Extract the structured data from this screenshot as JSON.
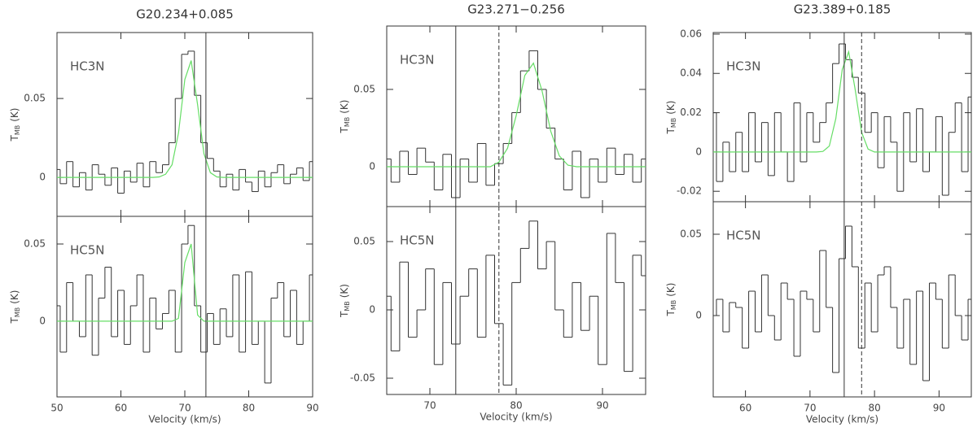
{
  "chart_data": [
    {
      "type": "line",
      "step": true,
      "title": "G20.234+0.085",
      "label": "HC3N",
      "ylabel": {
        "main": "T",
        "sub": "MB",
        "unit": "(K)"
      },
      "x": [
        50,
        51,
        52,
        53,
        54,
        55,
        56,
        57,
        58,
        59,
        60,
        61,
        62,
        63,
        64,
        65,
        66,
        67,
        68,
        69,
        70,
        71,
        72,
        73,
        74,
        75,
        76,
        77,
        78,
        79,
        80,
        81,
        82,
        83,
        84,
        85,
        86,
        87,
        88,
        89,
        90
      ],
      "xlim": [
        50,
        90
      ],
      "ylim": [
        -0.0247,
        0.0918
      ],
      "yticks": [
        0,
        0.05
      ],
      "vlines": [
        {
          "value": 73.3,
          "style": "solid"
        }
      ],
      "series": [
        {
          "color": "#333333",
          "values": [
            0.005,
            -0.004,
            0.01,
            -0.006,
            0.003,
            -0.008,
            0.008,
            0.002,
            -0.005,
            0.006,
            -0.01,
            0.004,
            -0.003,
            0.009,
            -0.006,
            0.01,
            0.003,
            0.008,
            0.022,
            0.05,
            0.078,
            0.08,
            0.052,
            0.022,
            0.012,
            0.004,
            -0.006,
            0.002,
            -0.008,
            0.005,
            -0.003,
            -0.009,
            0.004,
            -0.006,
            0.003,
            0.008,
            -0.004,
            0.002,
            0.006,
            -0.002,
            0.01
          ]
        },
        {
          "color": "#66dd66",
          "fit": true,
          "values": [
            0,
            0,
            0,
            0,
            0,
            0,
            0,
            0,
            0,
            0,
            0,
            0,
            0,
            0,
            0,
            0,
            0.0003,
            0.002,
            0.008,
            0.028,
            0.062,
            0.074,
            0.046,
            0.015,
            0.003,
            0.0003,
            0,
            0,
            0,
            0,
            0,
            0,
            0,
            0,
            0,
            0,
            0,
            0,
            0,
            0,
            0
          ]
        }
      ]
    },
    {
      "type": "line",
      "step": true,
      "label": "HC5N",
      "ylabel": {
        "main": "T",
        "sub": "MB",
        "unit": "(K)"
      },
      "xlabel": "Velocity (km/s)",
      "x": [
        50,
        51,
        52,
        53,
        54,
        55,
        56,
        57,
        58,
        59,
        60,
        61,
        62,
        63,
        64,
        65,
        66,
        67,
        68,
        69,
        70,
        71,
        72,
        73,
        74,
        75,
        76,
        77,
        78,
        79,
        80,
        81,
        82,
        83,
        84,
        85,
        86,
        87,
        88,
        89,
        90
      ],
      "xlim": [
        50,
        90
      ],
      "xticks": [
        50,
        60,
        70,
        80,
        90
      ],
      "ylim": [
        -0.049,
        0.0679
      ],
      "yticks": [
        0,
        0.05
      ],
      "vlines": [
        {
          "value": 73.3,
          "style": "solid"
        }
      ],
      "series": [
        {
          "color": "#333333",
          "values": [
            0.01,
            -0.02,
            0.025,
            0.0,
            -0.01,
            0.03,
            -0.022,
            0.015,
            0.035,
            -0.01,
            0.02,
            -0.015,
            0.01,
            0.03,
            -0.02,
            0.015,
            -0.005,
            0.005,
            0.02,
            -0.02,
            0.05,
            0.062,
            0.01,
            -0.02,
            0.005,
            -0.015,
            0.008,
            -0.01,
            0.03,
            -0.02,
            0.032,
            -0.015,
            0.0,
            -0.04,
            0.015,
            0.025,
            -0.01,
            0.02,
            -0.015,
            0.0,
            0.03
          ]
        },
        {
          "color": "#66dd66",
          "fit": true,
          "values": [
            0,
            0,
            0,
            0,
            0,
            0,
            0,
            0,
            0,
            0,
            0,
            0,
            0,
            0,
            0,
            0,
            0,
            0,
            0,
            0.0018,
            0.038,
            0.05,
            0.004,
            0,
            0,
            0,
            0,
            0,
            0,
            0,
            0,
            0,
            0,
            0,
            0,
            0,
            0,
            0,
            0,
            0,
            0
          ]
        }
      ]
    },
    {
      "type": "line",
      "step": true,
      "title": "G23.271−0.256",
      "label": "HC3N",
      "ylabel": {
        "main": "T",
        "sub": "MB",
        "unit": "(K)"
      },
      "x": [
        65,
        66,
        67,
        68,
        69,
        70,
        71,
        72,
        73,
        74,
        75,
        76,
        77,
        78,
        79,
        80,
        81,
        82,
        83,
        84,
        85,
        86,
        87,
        88,
        89,
        90,
        91,
        92,
        93,
        94,
        95
      ],
      "xlim": [
        65,
        95
      ],
      "ylim": [
        -0.0258,
        0.091
      ],
      "yticks": [
        0,
        0.05
      ],
      "vlines": [
        {
          "value": 73.0,
          "style": "solid"
        },
        {
          "value": 78.0,
          "style": "dashed"
        }
      ],
      "series": [
        {
          "color": "#333333",
          "values": [
            0.005,
            -0.01,
            0.01,
            -0.005,
            0.012,
            0.003,
            -0.015,
            0.008,
            -0.02,
            0.005,
            -0.01,
            0.015,
            -0.012,
            0.002,
            0.015,
            0.035,
            0.062,
            0.075,
            0.05,
            0.025,
            0.005,
            -0.015,
            0.01,
            -0.02,
            0.005,
            -0.01,
            0.012,
            -0.005,
            0.008,
            -0.01,
            0.005
          ]
        },
        {
          "color": "#66dd66",
          "fit": true,
          "values": [
            0,
            0,
            0,
            0,
            0,
            0,
            0,
            0,
            0,
            0,
            0,
            0,
            0,
            0.003,
            0.012,
            0.033,
            0.059,
            0.067,
            0.049,
            0.023,
            0.007,
            0.001,
            0,
            0,
            0,
            0,
            0,
            0,
            0,
            0,
            0
          ]
        }
      ]
    },
    {
      "type": "line",
      "step": true,
      "label": "HC5N",
      "ylabel": {
        "main": "T",
        "sub": "MB",
        "unit": "(K)"
      },
      "xlabel": "Velocity (km/s)",
      "x": [
        65,
        66,
        67,
        68,
        69,
        70,
        71,
        72,
        73,
        74,
        75,
        76,
        77,
        78,
        79,
        80,
        81,
        82,
        83,
        84,
        85,
        86,
        87,
        88,
        89,
        90,
        91,
        92,
        93,
        94,
        95
      ],
      "xlim": [
        65,
        95
      ],
      "xticks": [
        70,
        80,
        90
      ],
      "ylim": [
        -0.0619,
        0.0756
      ],
      "yticks": [
        -0.05,
        0,
        0.05
      ],
      "vlines": [
        {
          "value": 73.0,
          "style": "solid"
        },
        {
          "value": 78.0,
          "style": "dashed"
        }
      ],
      "series": [
        {
          "color": "#333333",
          "values": [
            0.01,
            -0.03,
            0.035,
            -0.02,
            0.0,
            0.03,
            -0.04,
            0.02,
            -0.025,
            0.01,
            0.03,
            -0.02,
            0.04,
            -0.01,
            -0.055,
            0.02,
            0.045,
            0.065,
            0.03,
            0.05,
            0.0,
            -0.02,
            0.02,
            -0.015,
            0.01,
            -0.04,
            0.056,
            0.02,
            -0.045,
            0.04,
            0.025
          ]
        }
      ]
    },
    {
      "type": "line",
      "step": true,
      "title": "G23.389+0.185",
      "label": "HC3N",
      "ylabel": {
        "main": "T",
        "sub": "MB",
        "unit": "(K)"
      },
      "x": [
        55,
        56,
        57,
        58,
        59,
        60,
        61,
        62,
        63,
        64,
        65,
        66,
        67,
        68,
        69,
        70,
        71,
        72,
        73,
        74,
        75,
        76,
        77,
        78,
        79,
        80,
        81,
        82,
        83,
        84,
        85,
        86,
        87,
        88,
        89,
        90,
        91,
        92,
        93,
        94,
        95
      ],
      "xlim": [
        55,
        95
      ],
      "ylim": [
        -0.0253,
        0.0608
      ],
      "yticks": [
        -0.02,
        0,
        0.02,
        0.04,
        0.06
      ],
      "vlines": [
        {
          "value": 75.3,
          "style": "solid"
        },
        {
          "value": 78.0,
          "style": "dashed"
        }
      ],
      "series": [
        {
          "color": "#333333",
          "values": [
            0.02,
            -0.015,
            0.005,
            -0.01,
            0.01,
            -0.01,
            0.02,
            -0.005,
            0.015,
            -0.012,
            0.02,
            0.0,
            -0.015,
            0.025,
            -0.005,
            0.02,
            0.005,
            0.015,
            0.025,
            0.045,
            0.055,
            0.047,
            0.038,
            0.03,
            0.01,
            0.02,
            -0.008,
            0.018,
            0.005,
            -0.02,
            0.02,
            -0.005,
            0.022,
            -0.01,
            0.0,
            0.018,
            -0.022,
            0.01,
            0.025,
            -0.01,
            0.028
          ]
        },
        {
          "color": "#66dd66",
          "fit": true,
          "values": [
            0,
            0,
            0,
            0,
            0,
            0,
            0,
            0,
            0,
            0,
            0,
            0,
            0,
            0,
            0,
            0,
            0,
            0.0003,
            0.003,
            0.017,
            0.042,
            0.051,
            0.032,
            0.01,
            0.0015,
            0,
            0,
            0,
            0,
            0,
            0,
            0,
            0,
            0,
            0,
            0,
            0,
            0,
            0,
            0,
            0
          ]
        }
      ]
    },
    {
      "type": "line",
      "step": true,
      "label": "HC5N",
      "ylabel": {
        "main": "T",
        "sub": "MB",
        "unit": "(K)"
      },
      "xlabel": "Velocity (km/s)",
      "x": [
        55,
        56,
        57,
        58,
        59,
        60,
        61,
        62,
        63,
        64,
        65,
        66,
        67,
        68,
        69,
        70,
        71,
        72,
        73,
        74,
        75,
        76,
        77,
        78,
        79,
        80,
        81,
        82,
        83,
        84,
        85,
        86,
        87,
        88,
        89,
        90,
        91,
        92,
        93,
        94,
        95
      ],
      "xlim": [
        55,
        95
      ],
      "xticks": [
        60,
        70,
        80,
        90
      ],
      "ylim": [
        -0.05,
        0.07
      ],
      "yticks": [
        0,
        0.05
      ],
      "vlines": [
        {
          "value": 75.3,
          "style": "solid"
        },
        {
          "value": 78.0,
          "style": "dashed"
        }
      ],
      "series": [
        {
          "color": "#333333",
          "values": [
            0.0,
            0.01,
            -0.01,
            0.008,
            0.005,
            -0.02,
            0.015,
            -0.01,
            0.025,
            0.0,
            -0.015,
            0.02,
            0.01,
            -0.025,
            0.015,
            0.01,
            -0.01,
            0.04,
            0.005,
            -0.035,
            0.035,
            0.055,
            0.03,
            -0.02,
            0.02,
            -0.01,
            0.025,
            0.03,
            0.005,
            -0.02,
            0.01,
            -0.03,
            0.015,
            -0.04,
            0.02,
            0.01,
            -0.02,
            0.025,
            0.0,
            -0.015,
            0.01
          ]
        }
      ]
    }
  ]
}
